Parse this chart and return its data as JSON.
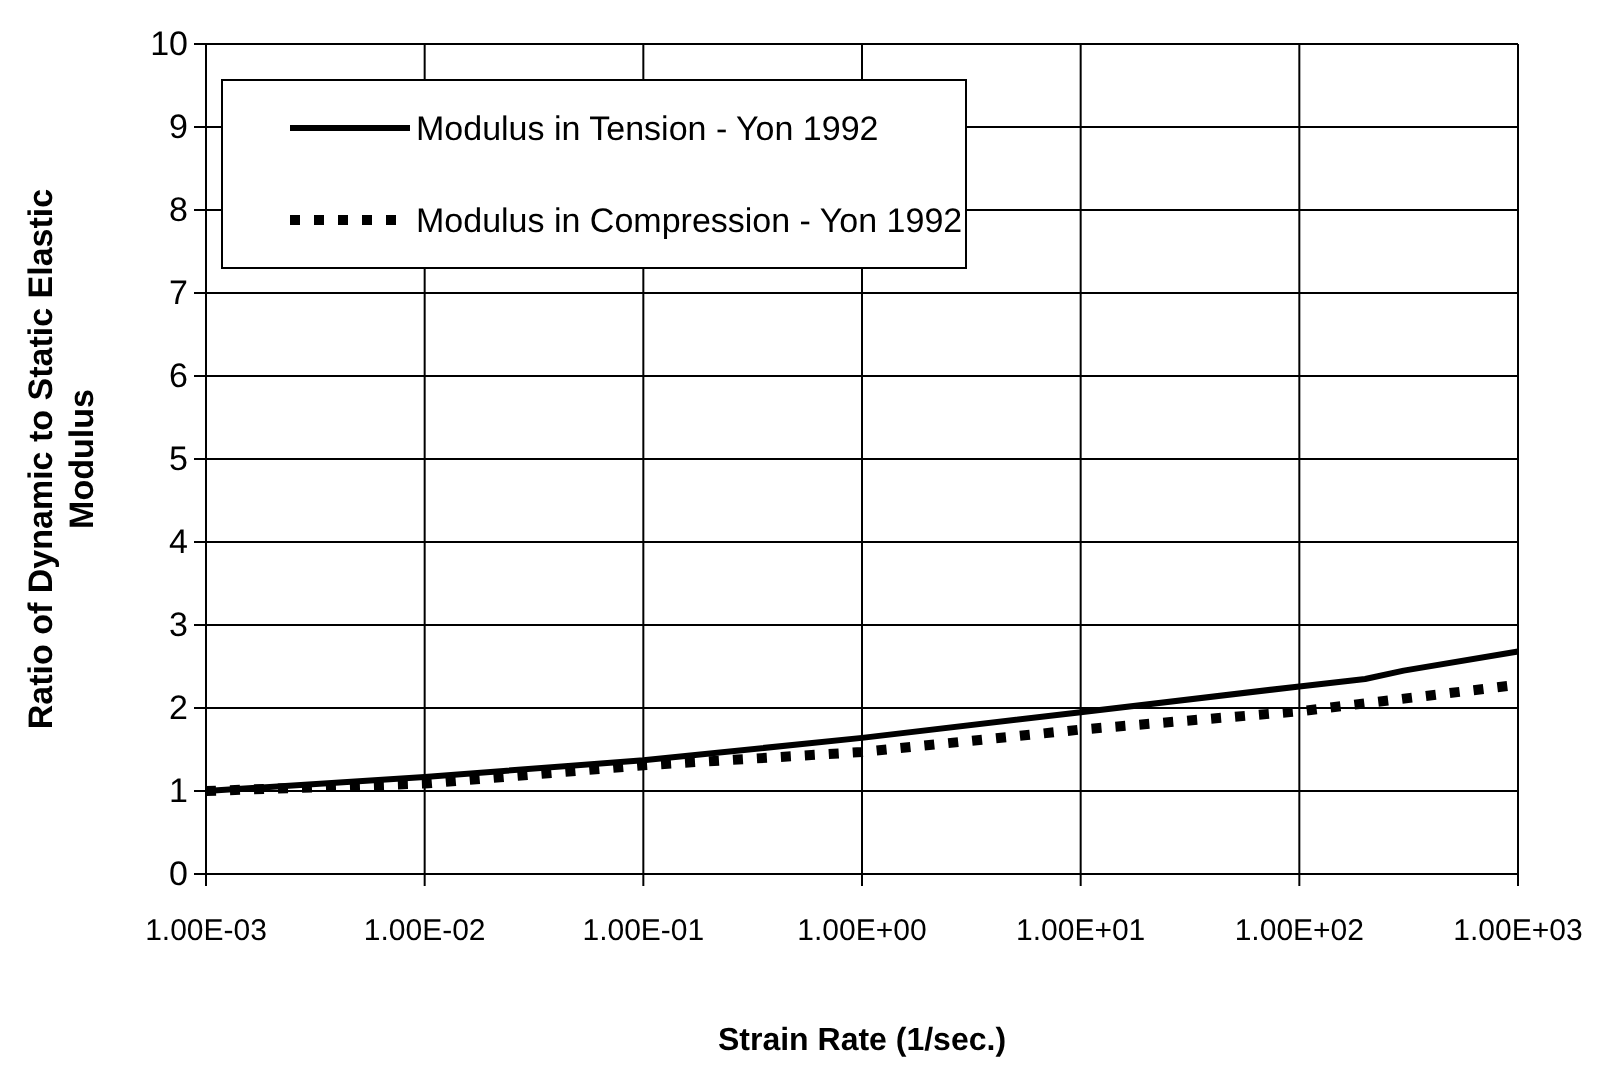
{
  "chart_data": {
    "type": "line",
    "xlabel": "Strain Rate (1/sec.)",
    "ylabel": "Ratio of Dynamic to Static Elastic\nModulus",
    "log": "x",
    "grid": true,
    "legend": "top left",
    "xlim": [
      0.001,
      1000
    ],
    "ylim": [
      0,
      10
    ],
    "xticks": [
      {
        "value": 0.001,
        "label": "1.00E-03"
      },
      {
        "value": 0.01,
        "label": "1.00E-02"
      },
      {
        "value": 0.1,
        "label": "1.00E-01"
      },
      {
        "value": 1,
        "label": "1.00E+00"
      },
      {
        "value": 10,
        "label": "1.00E+01"
      },
      {
        "value": 100,
        "label": "1.00E+02"
      },
      {
        "value": 1000,
        "label": "1.00E+03"
      }
    ],
    "yticks": [
      0,
      1,
      2,
      3,
      4,
      5,
      6,
      7,
      8,
      9,
      10
    ],
    "series": [
      {
        "name": "Modulus in Tension - Yon 1992",
        "color": "#000000",
        "line_style": "solid",
        "x": [
          0.001,
          0.01,
          0.1,
          1,
          10,
          100,
          200,
          300,
          1000
        ],
        "values": [
          1.0,
          1.17,
          1.37,
          1.64,
          1.95,
          2.26,
          2.35,
          2.45,
          2.68
        ]
      },
      {
        "name": "Modulus in Compression - Yon 1992",
        "color": "#000000",
        "line_style": "dotted",
        "x": [
          0.001,
          0.01,
          0.1,
          1,
          10,
          100,
          1000
        ],
        "values": [
          1.0,
          1.09,
          1.31,
          1.47,
          1.74,
          1.96,
          2.28
        ]
      }
    ]
  }
}
